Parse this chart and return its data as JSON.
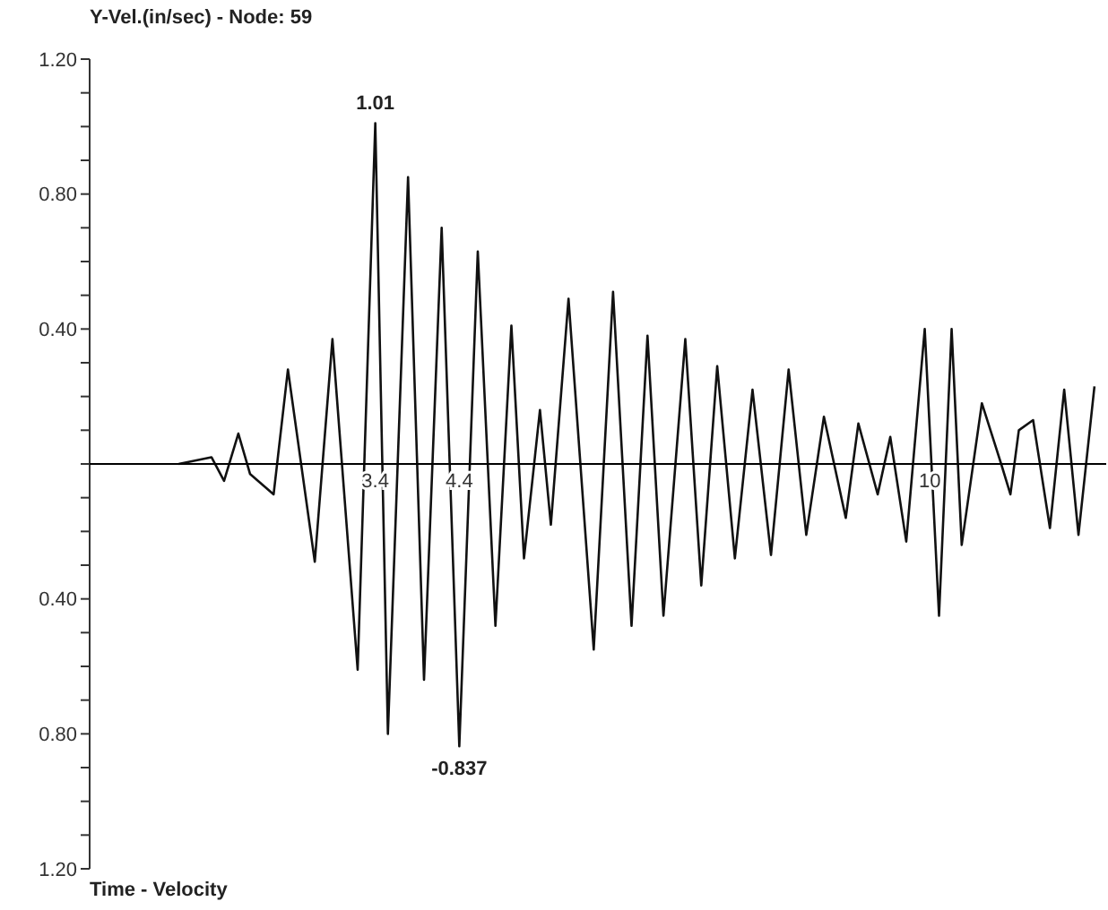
{
  "chart_data": {
    "type": "line",
    "title": "Y-Vel.(in/sec) - Node: 59",
    "xlabel": "Time - Velocity",
    "x": [
      1.06,
      1.45,
      1.6,
      1.77,
      1.91,
      2.19,
      2.36,
      2.68,
      2.89,
      3.19,
      3.4,
      3.55,
      3.79,
      3.98,
      4.19,
      4.4,
      4.62,
      4.83,
      5.02,
      5.17,
      5.36,
      5.49,
      5.7,
      6.0,
      6.23,
      6.45,
      6.64,
      6.83,
      7.09,
      7.28,
      7.47,
      7.68,
      7.89,
      8.11,
      8.32,
      8.53,
      8.74,
      9.0,
      9.15,
      9.38,
      9.53,
      9.72,
      9.94,
      10.11,
      10.26,
      10.38,
      10.62,
      10.85,
      10.96,
      11.06,
      11.23,
      11.43,
      11.6,
      11.77,
      11.96
    ],
    "series": [
      {
        "color": "#111111",
        "values": [
          0,
          0.02,
          -0.05,
          0.09,
          -0.03,
          -0.09,
          0.28,
          -0.29,
          0.37,
          -0.61,
          1.01,
          -0.8,
          0.85,
          -0.64,
          0.7,
          -0.837,
          0.63,
          -0.48,
          0.41,
          -0.28,
          0.16,
          -0.18,
          0.49,
          -0.55,
          0.51,
          -0.48,
          0.38,
          -0.45,
          0.37,
          -0.36,
          0.29,
          -0.28,
          0.22,
          -0.27,
          0.28,
          -0.21,
          0.14,
          -0.16,
          0.12,
          -0.09,
          0.08,
          -0.23,
          0.4,
          -0.45,
          0.4,
          -0.24,
          0.18,
          0,
          -0.09,
          0.1,
          0.13,
          -0.19,
          0.22,
          -0.21,
          0.23
        ]
      }
    ],
    "xlim": [
      0,
      12.1
    ],
    "xticks": [
      3.4,
      4.4,
      10
    ],
    "ylim": [
      -1.2,
      1.2
    ],
    "yticks": [
      {
        "value": -1.2,
        "label": "1.20"
      },
      {
        "value": -1.1,
        "label": null
      },
      {
        "value": -1.0,
        "label": null
      },
      {
        "value": -0.9,
        "label": null
      },
      {
        "value": -0.8,
        "label": "0.80"
      },
      {
        "value": -0.7,
        "label": null
      },
      {
        "value": -0.6,
        "label": null
      },
      {
        "value": -0.5,
        "label": null
      },
      {
        "value": -0.4,
        "label": "0.40"
      },
      {
        "value": -0.3,
        "label": null
      },
      {
        "value": -0.2,
        "label": null
      },
      {
        "value": -0.1,
        "label": null
      },
      {
        "value": 0,
        "label": null
      },
      {
        "value": 0.1,
        "label": null
      },
      {
        "value": 0.2,
        "label": null
      },
      {
        "value": 0.3,
        "label": null
      },
      {
        "value": 0.4,
        "label": "0.40"
      },
      {
        "value": 0.5,
        "label": null
      },
      {
        "value": 0.6,
        "label": null
      },
      {
        "value": 0.7,
        "label": null
      },
      {
        "value": 0.8,
        "label": "0.80"
      },
      {
        "value": 0.9,
        "label": null
      },
      {
        "value": 1.0,
        "label": null
      },
      {
        "value": 1.1,
        "label": null
      },
      {
        "value": 1.2,
        "label": "1.20"
      }
    ],
    "annotations": [
      {
        "text": "1.01",
        "x": 3.4,
        "y": 1.01
      },
      {
        "text": "-0.837",
        "x": 4.4,
        "y": -0.837
      }
    ],
    "grid": false,
    "legend": false,
    "marker": "none",
    "line_style": "solid"
  }
}
